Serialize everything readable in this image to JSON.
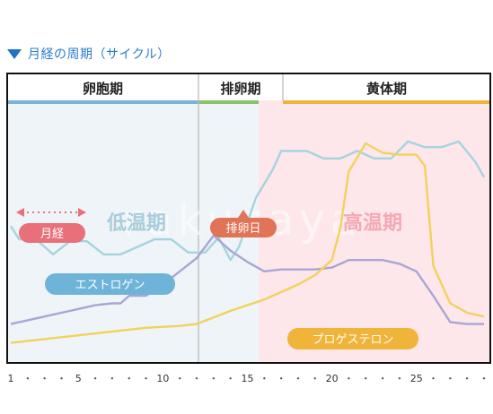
{
  "title": "月経の周期（サイクル）",
  "watermark": "rakuzaya",
  "chart_data": {
    "type": "line",
    "x_range": [
      1,
      29
    ],
    "x_ticks": [
      1,
      5,
      10,
      15,
      20,
      25
    ],
    "phases": [
      {
        "name": "卵胞期",
        "start": 1,
        "end": 12,
        "color": "#78b4d8",
        "bg": "#eef4f7"
      },
      {
        "name": "排卵期",
        "start": 12,
        "end": 17,
        "color": "#8ac468",
        "bg": "#eef4f7"
      },
      {
        "name": "黄体期",
        "start": 17,
        "end": 29,
        "color": "#f0b43a",
        "bg": "#fde7ea"
      }
    ],
    "labels": {
      "menstruation": "月経",
      "low_temp": "低温期",
      "ovulation_day": "排卵日",
      "high_temp": "高温期"
    },
    "series": [
      {
        "name": "基礎体温",
        "color": "#a5d4df",
        "x": [
          1,
          1.5,
          2.5,
          3.5,
          4.5,
          5.5,
          6.5,
          7.5,
          8.5,
          9.5,
          10.5,
          11.5,
          12.5,
          13.3,
          14,
          14.5,
          15.5,
          16.5,
          17,
          17.5,
          18.5,
          19.5,
          20.5,
          21.5,
          22.5,
          23.5,
          24.5,
          25.5,
          26.5,
          27.5,
          28.5,
          29
        ],
        "values": [
          0.66,
          0.59,
          0.59,
          0.51,
          0.58,
          0.58,
          0.51,
          0.51,
          0.55,
          0.59,
          0.59,
          0.52,
          0.52,
          0.6,
          0.48,
          0.55,
          0.81,
          0.96,
          1.06,
          1.06,
          1.06,
          1.02,
          1.02,
          1.06,
          1.02,
          1.02,
          1.11,
          1.08,
          1.08,
          1.11,
          1.0,
          0.92
        ]
      },
      {
        "name": "エストロゲン",
        "color": "#a9a6d6",
        "x": [
          1,
          2,
          3,
          4,
          5,
          6,
          7,
          7.5,
          8,
          9,
          10,
          11,
          12,
          13,
          14,
          15,
          16,
          17,
          18,
          19,
          20,
          21,
          22,
          23,
          24,
          25,
          26,
          27,
          28,
          29
        ],
        "values": [
          0.14,
          0.16,
          0.18,
          0.2,
          0.22,
          0.24,
          0.25,
          0.25,
          0.29,
          0.29,
          0.35,
          0.42,
          0.49,
          0.61,
          0.53,
          0.47,
          0.42,
          0.43,
          0.43,
          0.43,
          0.44,
          0.48,
          0.48,
          0.48,
          0.46,
          0.42,
          0.29,
          0.15,
          0.14,
          0.14
        ]
      },
      {
        "name": "プロゲステロン",
        "color": "#f2d25c",
        "x": [
          1,
          3,
          5,
          7,
          9,
          11,
          12,
          14,
          16,
          17,
          18,
          19,
          20,
          20.5,
          21,
          22,
          23,
          24,
          25,
          25.5,
          26,
          27,
          28,
          29
        ],
        "values": [
          0.04,
          0.06,
          0.08,
          0.1,
          0.12,
          0.13,
          0.14,
          0.21,
          0.27,
          0.31,
          0.35,
          0.4,
          0.48,
          0.65,
          0.95,
          1.1,
          1.05,
          1.04,
          1.04,
          0.98,
          0.45,
          0.25,
          0.2,
          0.18
        ]
      }
    ],
    "pills": [
      {
        "label": "月経",
        "color": "#e8707a"
      },
      {
        "label": "エストロゲン",
        "color": "#6eb4d9"
      },
      {
        "label": "プロゲステロン",
        "color": "#f0b43a"
      },
      {
        "label": "排卵日",
        "color": "#e17356"
      }
    ]
  }
}
